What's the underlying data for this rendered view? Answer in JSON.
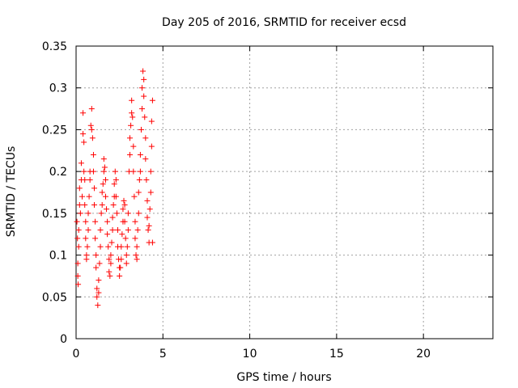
{
  "chart_data": {
    "type": "scatter",
    "title": "Day 205 of 2016, SRMTID for receiver ecsd",
    "xlabel": "GPS time / hours",
    "ylabel": "SRMTID / TECUs",
    "xlim": [
      0,
      24
    ],
    "ylim": [
      0,
      0.35
    ],
    "x_ticks": [
      0,
      5,
      10,
      15,
      20
    ],
    "x_tick_labels": [
      "0",
      "5",
      "10",
      "15",
      "20"
    ],
    "y_ticks": [
      0,
      0.05,
      0.1,
      0.15,
      0.2,
      0.25,
      0.3,
      0.35
    ],
    "y_tick_labels": [
      "0",
      "0.05",
      "0.1",
      "0.15",
      "0.2",
      "0.25",
      "0.3",
      "0.35"
    ],
    "grid": true,
    "marker": "+",
    "series": [
      {
        "color": "#ff0000",
        "points": [
          [
            0.05,
            0.14
          ],
          [
            0.08,
            0.12
          ],
          [
            0.1,
            0.09
          ],
          [
            0.1,
            0.075
          ],
          [
            0.12,
            0.065
          ],
          [
            0.15,
            0.11
          ],
          [
            0.15,
            0.13
          ],
          [
            0.2,
            0.16
          ],
          [
            0.2,
            0.18
          ],
          [
            0.25,
            0.15
          ],
          [
            0.3,
            0.19
          ],
          [
            0.3,
            0.21
          ],
          [
            0.35,
            0.17
          ],
          [
            0.4,
            0.27
          ],
          [
            0.4,
            0.245
          ],
          [
            0.45,
            0.235
          ],
          [
            0.45,
            0.2
          ],
          [
            0.5,
            0.19
          ],
          [
            0.5,
            0.16
          ],
          [
            0.55,
            0.14
          ],
          [
            0.55,
            0.12
          ],
          [
            0.6,
            0.1
          ],
          [
            0.6,
            0.095
          ],
          [
            0.65,
            0.11
          ],
          [
            0.7,
            0.13
          ],
          [
            0.7,
            0.15
          ],
          [
            0.75,
            0.17
          ],
          [
            0.8,
            0.19
          ],
          [
            0.8,
            0.2
          ],
          [
            0.85,
            0.255
          ],
          [
            0.9,
            0.275
          ],
          [
            0.9,
            0.25
          ],
          [
            0.95,
            0.24
          ],
          [
            1.0,
            0.22
          ],
          [
            1.0,
            0.2
          ],
          [
            1.05,
            0.18
          ],
          [
            1.05,
            0.16
          ],
          [
            1.1,
            0.14
          ],
          [
            1.1,
            0.12
          ],
          [
            1.15,
            0.1
          ],
          [
            1.15,
            0.085
          ],
          [
            1.2,
            0.06
          ],
          [
            1.2,
            0.05
          ],
          [
            1.25,
            0.04
          ],
          [
            1.3,
            0.055
          ],
          [
            1.3,
            0.07
          ],
          [
            1.35,
            0.09
          ],
          [
            1.4,
            0.11
          ],
          [
            1.4,
            0.13
          ],
          [
            1.45,
            0.15
          ],
          [
            1.5,
            0.16
          ],
          [
            1.5,
            0.175
          ],
          [
            1.55,
            0.185
          ],
          [
            1.6,
            0.2
          ],
          [
            1.6,
            0.215
          ],
          [
            1.65,
            0.205
          ],
          [
            1.7,
            0.19
          ],
          [
            1.7,
            0.17
          ],
          [
            1.75,
            0.155
          ],
          [
            1.8,
            0.14
          ],
          [
            1.8,
            0.125
          ],
          [
            1.85,
            0.11
          ],
          [
            1.9,
            0.095
          ],
          [
            1.9,
            0.08
          ],
          [
            1.95,
            0.075
          ],
          [
            2.0,
            0.09
          ],
          [
            2.0,
            0.1
          ],
          [
            2.05,
            0.115
          ],
          [
            2.1,
            0.13
          ],
          [
            2.1,
            0.145
          ],
          [
            2.15,
            0.16
          ],
          [
            2.2,
            0.17
          ],
          [
            2.2,
            0.185
          ],
          [
            2.25,
            0.2
          ],
          [
            2.3,
            0.19
          ],
          [
            2.3,
            0.17
          ],
          [
            2.35,
            0.15
          ],
          [
            2.4,
            0.13
          ],
          [
            2.4,
            0.11
          ],
          [
            2.45,
            0.095
          ],
          [
            2.5,
            0.085
          ],
          [
            2.5,
            0.075
          ],
          [
            2.55,
            0.085
          ],
          [
            2.6,
            0.095
          ],
          [
            2.6,
            0.11
          ],
          [
            2.65,
            0.125
          ],
          [
            2.7,
            0.14
          ],
          [
            2.7,
            0.155
          ],
          [
            2.75,
            0.165
          ],
          [
            2.8,
            0.16
          ],
          [
            2.8,
            0.14
          ],
          [
            2.85,
            0.12
          ],
          [
            2.9,
            0.1
          ],
          [
            2.9,
            0.09
          ],
          [
            2.95,
            0.11
          ],
          [
            3.0,
            0.13
          ],
          [
            3.0,
            0.15
          ],
          [
            3.05,
            0.2
          ],
          [
            3.1,
            0.22
          ],
          [
            3.1,
            0.24
          ],
          [
            3.15,
            0.255
          ],
          [
            3.2,
            0.27
          ],
          [
            3.2,
            0.285
          ],
          [
            3.25,
            0.265
          ],
          [
            3.3,
            0.23
          ],
          [
            3.3,
            0.2
          ],
          [
            3.35,
            0.17
          ],
          [
            3.4,
            0.14
          ],
          [
            3.4,
            0.12
          ],
          [
            3.45,
            0.1
          ],
          [
            3.5,
            0.095
          ],
          [
            3.5,
            0.11
          ],
          [
            3.55,
            0.13
          ],
          [
            3.6,
            0.15
          ],
          [
            3.6,
            0.175
          ],
          [
            3.65,
            0.19
          ],
          [
            3.7,
            0.2
          ],
          [
            3.7,
            0.22
          ],
          [
            3.75,
            0.25
          ],
          [
            3.8,
            0.275
          ],
          [
            3.8,
            0.3
          ],
          [
            3.85,
            0.32
          ],
          [
            3.9,
            0.31
          ],
          [
            3.9,
            0.29
          ],
          [
            3.95,
            0.265
          ],
          [
            4.0,
            0.24
          ],
          [
            4.0,
            0.215
          ],
          [
            4.05,
            0.19
          ],
          [
            4.1,
            0.165
          ],
          [
            4.1,
            0.145
          ],
          [
            4.15,
            0.13
          ],
          [
            4.2,
            0.115
          ],
          [
            4.2,
            0.135
          ],
          [
            4.25,
            0.155
          ],
          [
            4.3,
            0.175
          ],
          [
            4.3,
            0.2
          ],
          [
            4.35,
            0.23
          ],
          [
            4.35,
            0.26
          ],
          [
            4.4,
            0.285
          ],
          [
            4.4,
            0.115
          ]
        ]
      }
    ]
  }
}
